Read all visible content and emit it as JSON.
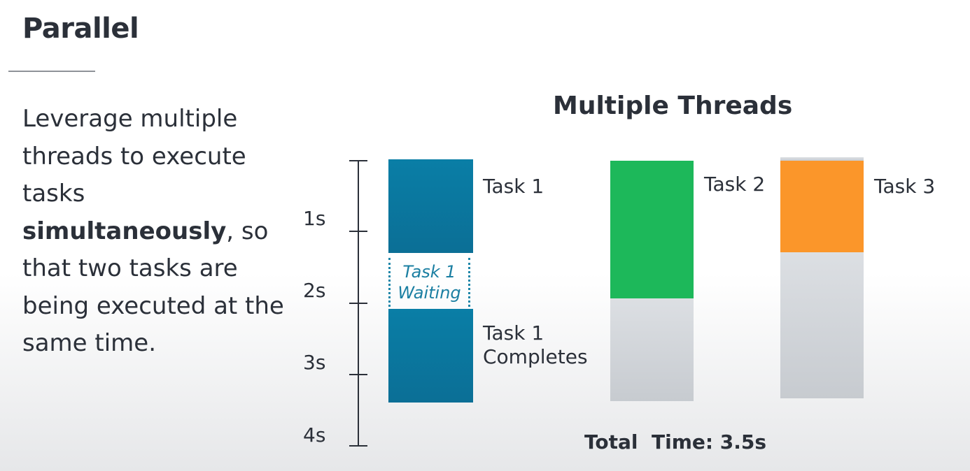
{
  "slide": {
    "title": "Parallel",
    "description_before": "Leverage multiple threads to execute tasks",
    "description_bold": "simultaneously",
    "description_after": ", so that two tasks are being executed at the same time."
  },
  "diagram": {
    "title": "Multiple Threads",
    "axis_labels": [
      "1s",
      "2s",
      "3s",
      "4s"
    ],
    "waiting_line1": "Task 1",
    "waiting_line2": "Waiting",
    "task1_label": "Task 1",
    "task1_complete_line1": "Task 1",
    "task1_complete_line2": "Completes",
    "task2_label": "Task 2",
    "task3_label": "Task 3",
    "total": "Total  Time: 3.5s",
    "colors": {
      "task1": "#0b78a0",
      "task2": "#1db85a",
      "task3": "#fb962a",
      "idle": "#d3d6da"
    }
  }
}
